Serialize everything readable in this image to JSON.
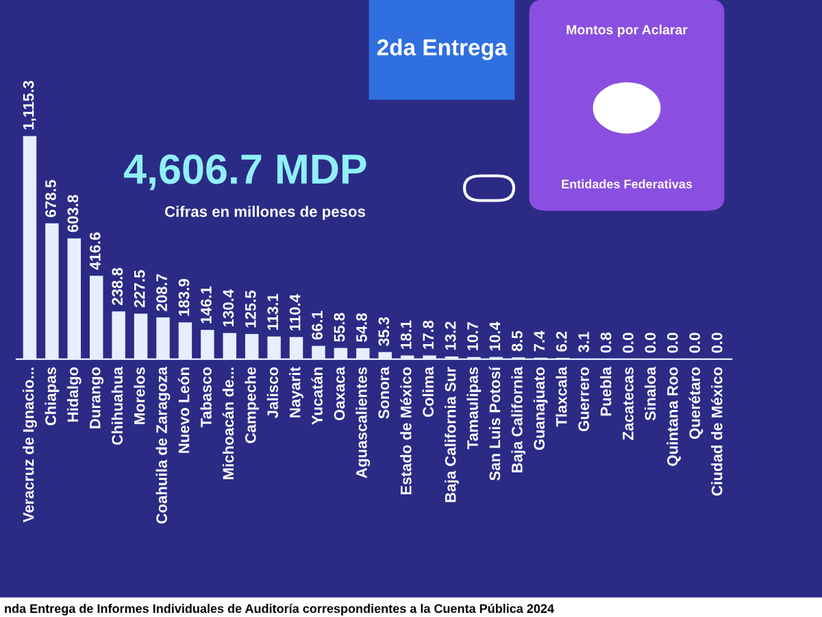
{
  "chart_data": {
    "type": "bar",
    "title": "4,606.7 MDP",
    "subtitle": "Cifras en millones de pesos",
    "annotations": [
      "2da Entrega",
      "Montos por Aclarar",
      "Entidades Federativas",
      "nda Entrega de Informes Individuales de Auditoría correspondientes a la Cuenta Pública 2024"
    ],
    "categories": [
      "Veracruz de Ignacio...",
      "Chiapas",
      "Hidalgo",
      "Durango",
      "Chihuahua",
      "Morelos",
      "Coahuila de Zaragoza",
      "Nuevo León",
      "Tabasco",
      "Michoacán de...",
      "Campeche",
      "Jalisco",
      "Nayarit",
      "Yucatán",
      "Oaxaca",
      "Aguascalientes",
      "Sonora",
      "Estado de México",
      "Colima",
      "Baja California Sur",
      "Tamaulipas",
      "San Luis Potosí",
      "Baja California",
      "Guanajuato",
      "Tlaxcala",
      "Guerrero",
      "Puebla",
      "Zacatecas",
      "Sinaloa",
      "Quintana Roo",
      "Querétaro",
      "Ciudad de México"
    ],
    "values": [
      1115.3,
      678.5,
      603.8,
      416.6,
      238.8,
      227.5,
      208.7,
      183.9,
      146.1,
      130.4,
      125.5,
      113.1,
      110.4,
      66.1,
      55.8,
      54.8,
      35.3,
      18.1,
      17.8,
      13.2,
      10.7,
      10.4,
      8.5,
      7.4,
      6.2,
      3.1,
      0.8,
      0.0,
      0.0,
      0.0,
      0.0,
      0.0
    ],
    "value_labels": [
      "1,115.3",
      "678.5",
      "603.8",
      "416.6",
      "238.8",
      "227.5",
      "208.7",
      "183.9",
      "146.1",
      "130.4",
      "125.5",
      "113.1",
      "110.4",
      "66.1",
      "55.8",
      "54.8",
      "35.3",
      "18.1",
      "17.8",
      "13.2",
      "10.7",
      "10.4",
      "8.5",
      "7.4",
      "6.2",
      "3.1",
      "0.8",
      "0.0",
      "0.0",
      "0.0",
      "0.0",
      "0.0"
    ],
    "color": "#e6eeff"
  }
}
